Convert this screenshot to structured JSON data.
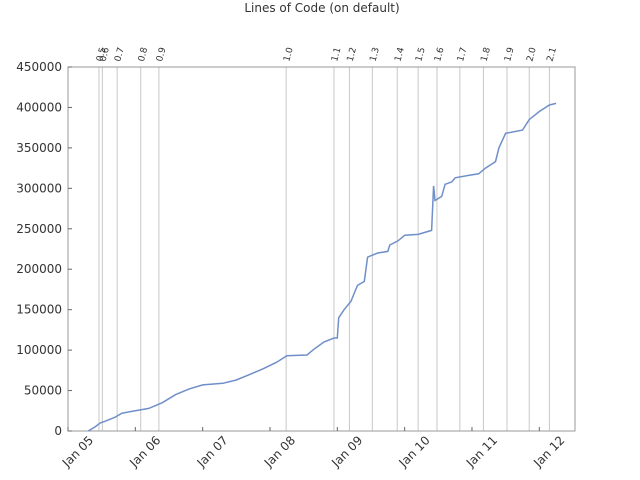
{
  "chart_data": {
    "type": "line",
    "title": "Lines of Code (on default)",
    "x": [
      2005.3,
      2005.4,
      2005.48,
      2005.55,
      2005.7,
      2005.8,
      2006.0,
      2006.2,
      2006.4,
      2006.6,
      2006.8,
      2007.0,
      2007.3,
      2007.5,
      2007.7,
      2007.9,
      2008.1,
      2008.25,
      2008.55,
      2008.65,
      2008.8,
      2008.95,
      2009.0,
      2009.02,
      2009.1,
      2009.2,
      2009.3,
      2009.4,
      2009.45,
      2009.6,
      2009.75,
      2009.78,
      2009.9,
      2010.0,
      2010.2,
      2010.4,
      2010.43,
      2010.45,
      2010.55,
      2010.6,
      2010.7,
      2010.75,
      2010.95,
      2011.1,
      2011.2,
      2011.35,
      2011.4,
      2011.5,
      2011.75,
      2011.85,
      2012.0,
      2012.15,
      2012.25
    ],
    "series": [
      {
        "color": "#6f8fc9",
        "values": [
          0,
          5000,
          10000,
          12000,
          17000,
          22000,
          25000,
          28000,
          35000,
          45000,
          52000,
          57000,
          59000,
          63000,
          70000,
          77000,
          85000,
          93000,
          94000,
          101000,
          110000,
          115000,
          115000,
          140000,
          150000,
          160000,
          180000,
          185000,
          215000,
          220000,
          222000,
          230000,
          235000,
          242000,
          243000,
          248000,
          303000,
          285000,
          290000,
          305000,
          308000,
          313000,
          316000,
          318000,
          325000,
          333000,
          350000,
          368000,
          372000,
          385000,
          395000,
          403000,
          405000
        ]
      }
    ],
    "xlim": [
      2005,
      2012.53
    ],
    "xticks": [
      {
        "value": 2005,
        "label": "Jan 05"
      },
      {
        "value": 2006,
        "label": "Jan 06"
      },
      {
        "value": 2007,
        "label": "Jan 07"
      },
      {
        "value": 2008,
        "label": "Jan 08"
      },
      {
        "value": 2009,
        "label": "Jan 09"
      },
      {
        "value": 2010,
        "label": "Jan 10"
      },
      {
        "value": 2011,
        "label": "Jan 11"
      },
      {
        "value": 2012,
        "label": "Jan 12"
      }
    ],
    "ylim": [
      0,
      450000
    ],
    "yticks": [
      0,
      50000,
      100000,
      150000,
      200000,
      250000,
      300000,
      350000,
      400000,
      450000
    ],
    "releases": [
      {
        "label": "0.5",
        "x": 2005.46
      },
      {
        "label": "0.6",
        "x": 2005.51
      },
      {
        "label": "0.7",
        "x": 2005.73
      },
      {
        "label": "0.8",
        "x": 2006.08
      },
      {
        "label": "0.9",
        "x": 2006.35
      },
      {
        "label": "1.0",
        "x": 2008.24
      },
      {
        "label": "1.1",
        "x": 2008.95
      },
      {
        "label": "1.2",
        "x": 2009.18
      },
      {
        "label": "1.3",
        "x": 2009.52
      },
      {
        "label": "1.4",
        "x": 2009.89
      },
      {
        "label": "1.5",
        "x": 2010.2
      },
      {
        "label": "1.6",
        "x": 2010.48
      },
      {
        "label": "1.7",
        "x": 2010.82
      },
      {
        "label": "1.8",
        "x": 2011.17
      },
      {
        "label": "1.9",
        "x": 2011.52
      },
      {
        "label": "2.0",
        "x": 2011.85
      },
      {
        "label": "2.1",
        "x": 2012.15
      }
    ],
    "release_color": "#c8c8c8"
  }
}
